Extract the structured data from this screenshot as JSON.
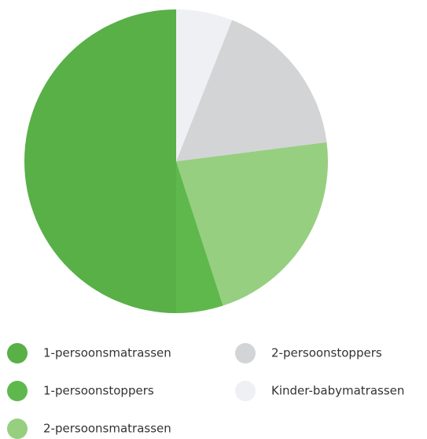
{
  "chart_data": {
    "type": "pie",
    "categories": [
      "1-persoonsmatrassen",
      "1-persoonstoppers",
      "2-persoonsmatrassen",
      "2-persoonstoppers",
      "Kinder-babymatrassen"
    ],
    "values": [
      50,
      5,
      22,
      17,
      6
    ],
    "colors": [
      "#58b047",
      "#5fb84c",
      "#96cf80",
      "#d3d4d6",
      "#eff0f3"
    ],
    "direction": "counterclockwise",
    "legend": "bottom"
  }
}
